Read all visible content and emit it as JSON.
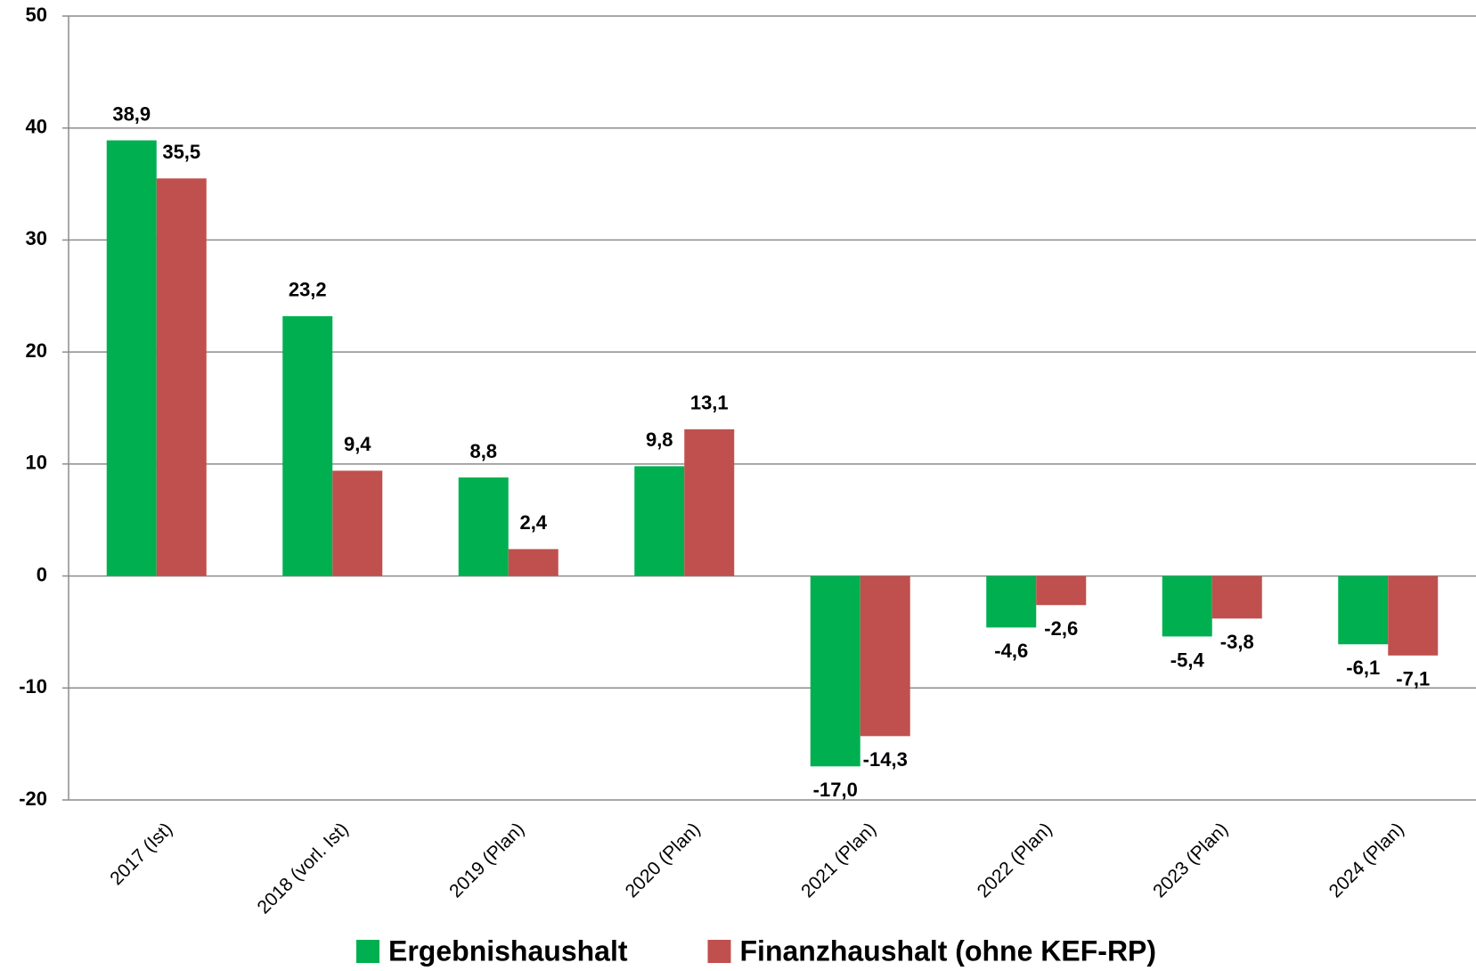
{
  "chart_data": {
    "type": "bar",
    "categories": [
      "2017 (Ist)",
      "2018 (vorl. Ist)",
      "2019 (Plan)",
      "2020 (Plan)",
      "2021 (Plan)",
      "2022 (Plan)",
      "2023 (Plan)",
      "2024 (Plan)"
    ],
    "series": [
      {
        "name": "Ergebnishaushalt",
        "color": "#00b050",
        "values": [
          38.9,
          23.2,
          8.8,
          9.8,
          -17.0,
          -4.6,
          -5.4,
          -6.1
        ],
        "value_labels": [
          "38,9",
          "23,2",
          "8,8",
          "9,8",
          "-17,0",
          "-4,6",
          "-5,4",
          "-6,1"
        ]
      },
      {
        "name": "Finanzhaushalt (ohne KEF-RP)",
        "color": "#c0504d",
        "values": [
          35.5,
          9.4,
          2.4,
          13.1,
          -14.3,
          -2.6,
          -3.8,
          -7.1
        ],
        "value_labels": [
          "35,5",
          "9,4",
          "2,4",
          "13,1",
          "-14,3",
          "-2,6",
          "-3,8",
          "-7,1"
        ]
      }
    ],
    "ylim": [
      -20,
      50
    ],
    "yticks": [
      -20,
      -10,
      0,
      10,
      20,
      30,
      40,
      50
    ],
    "grid": true,
    "legend": "bottom"
  }
}
